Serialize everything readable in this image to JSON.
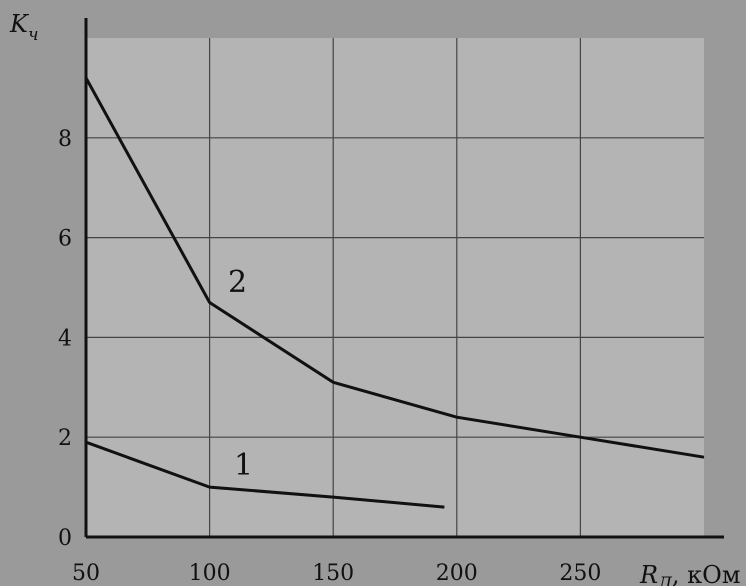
{
  "chart_data": {
    "type": "line",
    "ylabel": "K",
    "ylabel_sub": "ч",
    "xlabel": "R",
    "xlabel_sub": "Д",
    "xlabel_unit": ", кОм",
    "xlim": [
      50,
      300
    ],
    "ylim": [
      0,
      10
    ],
    "x_ticks": [
      50,
      100,
      150,
      200,
      250
    ],
    "y_ticks": [
      0,
      2,
      4,
      6,
      8
    ],
    "grid": true,
    "background": "#9a9a9a",
    "plot_background": "#b4b4b4",
    "line_color": "#111111",
    "series": [
      {
        "name": "1",
        "x": [
          50,
          100,
          150,
          195
        ],
        "y": [
          1.9,
          1.0,
          0.8,
          0.6
        ]
      },
      {
        "name": "2",
        "x": [
          50,
          100,
          150,
          200,
          250,
          300
        ],
        "y": [
          9.2,
          4.7,
          3.1,
          2.4,
          2.0,
          1.6
        ]
      }
    ]
  }
}
